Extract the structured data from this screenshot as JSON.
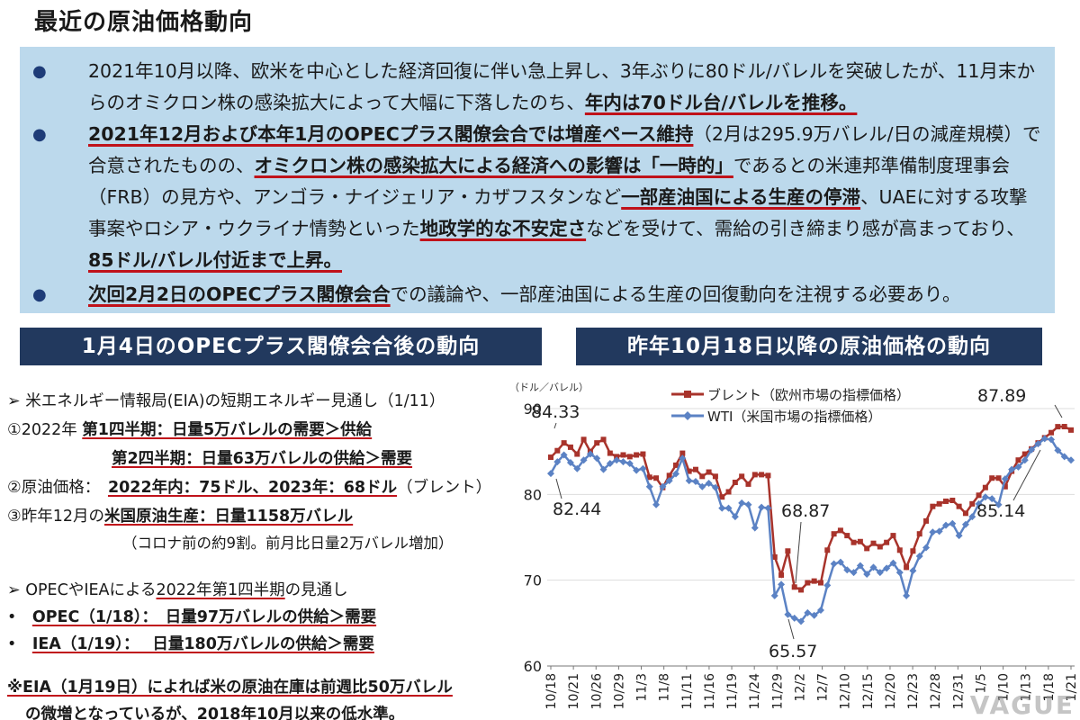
{
  "page_title": "最近の原油価格動向",
  "summary": {
    "bullet1": {
      "part1": "2021年10月以降、欧米を中心とした経済回復に伴い急上昇し、3年ぶりに80ドル/バレルを突破したが、11月末からのオミクロン株の感染拡大によって大幅に下落したのち、",
      "part2": "年内は70ドル台/バレルを推移。"
    },
    "bullet2": {
      "part1": "2021年12月および本年1月のOPECプラス閣僚会合では増産ペース維持",
      "part2": "（2月は295.9万バレル/日の減産規模）で合意されたものの、",
      "part3": "オミクロン株の感染拡大による経済への影響は「一時的」",
      "part4": "であるとの米連邦準備制度理事会（FRB）の見方や、アンゴラ・ナイジェリア・カザフスタンなど",
      "part5": "一部産油国による生産の停滞",
      "part6": "、UAEに対する攻撃事案やロシア・ウクライナ情勢といった",
      "part7": "地政学的な不安定さ",
      "part8": "などを受けて、需給の引き締まり感が高まっており、",
      "part9": "85ドル/バレル付近まで上昇。"
    },
    "bullet3": {
      "part1": "次回2月2日のOPECプラス閣僚会合",
      "part2": "での議論や、一部産油国による生産の回復動向を注視する必要あり。"
    }
  },
  "left_section": {
    "header": "1月4日のOPECプラス閣僚会合後の動向",
    "eia_title": "➢ 米エネルギー情報局(EIA)の短期エネルギー見通し（1/11）",
    "q1_prefix": "①2022年 ",
    "q1_label": "第1四半期",
    "q1_text": "：日量5万バレルの需要＞供給",
    "q2_label": "第2四半期",
    "q2_text": "：日量63万バレルの供給＞需要",
    "price_prefix": "②原油価格：",
    "price_text": "2022年内：75ドル、2023年：68ドル",
    "price_suffix": "（ブレント）",
    "prod_prefix": "③昨年12月の",
    "prod_label": "米国原油生産",
    "prod_text": "：日量1158万バレル",
    "prod_note": "（コロナ前の約9割。前月比日量2万バレル増加）",
    "opec_title_prefix": "➢ OPECやIEAによる",
    "opec_title_label": "2022年第1四半期",
    "opec_title_suffix": "の見通し",
    "opec_item": "OPEC（1/18）：　日量97万バレルの供給＞需要",
    "iea_item": "IEA（1/19）：　 日量180万バレルの供給＞需要",
    "bullet_mark": "•",
    "note_line1": "※EIA（1月19日）によれば米の原油在庫は前週比50万バレル",
    "note_line2": "の微増となっているが、2018年10月以来の低水準。"
  },
  "right_section": {
    "header": "昨年10月18日以降の原油価格の動向"
  },
  "chart_data": {
    "type": "line",
    "unit_label": "（ドル／バレル）",
    "ylim": [
      60,
      90
    ],
    "yticks": [
      60,
      70,
      80,
      90
    ],
    "x_ticks": [
      "10/18",
      "10/21",
      "10/26",
      "10/29",
      "11/3",
      "11/8",
      "11/11",
      "11/16",
      "11/19",
      "11/24",
      "11/29",
      "12/2",
      "12/7",
      "12/10",
      "12/15",
      "12/20",
      "12/23",
      "12/28",
      "12/31",
      "1/5",
      "1/10",
      "1/13",
      "1/18",
      "1/21"
    ],
    "series": [
      {
        "name": "ブレント（欧州市場の指標価格）",
        "color": "#a8332b",
        "marker": "square",
        "values": [
          84.33,
          85.1,
          86.0,
          85.5,
          84.7,
          86.4,
          85.0,
          86.0,
          86.4,
          84.8,
          84.4,
          84.6,
          84.4,
          84.6,
          84.7,
          82.0,
          81.9,
          80.8,
          82.2,
          83.4,
          84.8,
          82.7,
          82.9,
          82.1,
          82.6,
          82.1,
          79.7,
          80.3,
          81.4,
          82.1,
          81.2,
          82.3,
          82.3,
          82.2,
          72.7,
          70.6,
          73.4,
          69.2,
          68.87,
          69.7,
          69.9,
          69.7,
          73.5,
          75.4,
          75.8,
          75.2,
          74.4,
          74.5,
          73.7,
          74.3,
          73.9,
          74.4,
          75.2,
          73.5,
          71.5,
          73.4,
          75.4,
          76.9,
          78.6,
          78.9,
          79.2,
          79.3,
          78.6,
          77.8,
          78.9,
          79.9,
          80.8,
          81.9,
          81.9,
          80.9,
          82.7,
          84.0,
          84.7,
          85.3,
          86.0,
          86.6,
          87.2,
          87.89,
          87.9,
          87.5
        ]
      },
      {
        "name": "WTI（米国市場の指標価格）",
        "color": "#5b82c4",
        "marker": "diamond",
        "values": [
          82.44,
          83.8,
          84.6,
          83.7,
          83.0,
          84.0,
          84.7,
          84.2,
          82.9,
          83.6,
          84.0,
          83.8,
          83.6,
          82.8,
          83.0,
          80.9,
          78.8,
          80.9,
          81.6,
          82.4,
          84.2,
          81.6,
          81.5,
          80.9,
          81.3,
          80.8,
          78.4,
          78.4,
          77.4,
          79.0,
          78.8,
          76.1,
          78.5,
          78.4,
          68.2,
          69.5,
          66.0,
          65.57,
          65.2,
          66.2,
          65.9,
          66.5,
          69.4,
          71.9,
          72.1,
          71.2,
          70.9,
          71.7,
          70.7,
          71.5,
          70.9,
          71.4,
          72.0,
          70.9,
          68.2,
          71.1,
          72.8,
          73.8,
          75.6,
          75.7,
          76.4,
          76.6,
          75.2,
          76.5,
          77.4,
          78.9,
          79.7,
          79.5,
          78.8,
          81.8,
          82.9,
          83.2,
          84.0,
          85.2,
          85.9,
          86.5,
          86.4,
          85.14,
          84.4,
          84.0
        ]
      }
    ],
    "annotations": [
      "84.33",
      "82.44",
      "68.87",
      "65.57",
      "87.89",
      "85.14"
    ],
    "legend_position": "top"
  },
  "watermark": "VAGUE"
}
